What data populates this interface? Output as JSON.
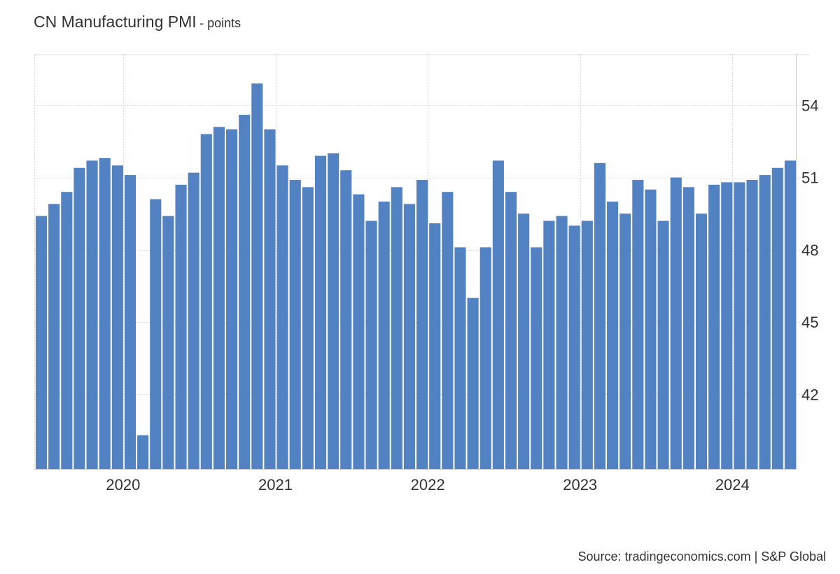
{
  "title": "CN Manufacturing PMI",
  "unit_label": "- points",
  "source": "Source: tradingeconomics.com | S&P Global",
  "chart_data": {
    "type": "bar",
    "start_month": "2019-06",
    "x": [
      "2019-06",
      "2019-07",
      "2019-08",
      "2019-09",
      "2019-10",
      "2019-11",
      "2019-12",
      "2020-01",
      "2020-02",
      "2020-03",
      "2020-04",
      "2020-05",
      "2020-06",
      "2020-07",
      "2020-08",
      "2020-09",
      "2020-10",
      "2020-11",
      "2020-12",
      "2021-01",
      "2021-02",
      "2021-03",
      "2021-04",
      "2021-05",
      "2021-06",
      "2021-07",
      "2021-08",
      "2021-09",
      "2021-10",
      "2021-11",
      "2021-12",
      "2022-01",
      "2022-02",
      "2022-03",
      "2022-04",
      "2022-05",
      "2022-06",
      "2022-07",
      "2022-08",
      "2022-09",
      "2022-10",
      "2022-11",
      "2022-12",
      "2023-01",
      "2023-02",
      "2023-03",
      "2023-04",
      "2023-05",
      "2023-06",
      "2023-07",
      "2023-08",
      "2023-09",
      "2023-10",
      "2023-11",
      "2023-12",
      "2024-01",
      "2024-02",
      "2024-03",
      "2024-04",
      "2024-05"
    ],
    "values": [
      49.4,
      49.9,
      50.4,
      51.4,
      51.7,
      51.8,
      51.5,
      51.1,
      40.3,
      50.1,
      49.4,
      50.7,
      51.2,
      52.8,
      53.1,
      53.0,
      53.6,
      54.9,
      53.0,
      51.5,
      50.9,
      50.6,
      51.9,
      52.0,
      51.3,
      50.3,
      49.2,
      50.0,
      50.6,
      49.9,
      50.9,
      49.1,
      50.4,
      48.1,
      46.0,
      48.1,
      51.7,
      50.4,
      49.5,
      48.1,
      49.2,
      49.4,
      49.0,
      49.2,
      51.6,
      50.0,
      49.5,
      50.9,
      50.5,
      49.2,
      51.0,
      50.6,
      49.5,
      50.7,
      50.8,
      50.8,
      50.9,
      51.1,
      51.4,
      51.7
    ],
    "xticks": [
      "2020",
      "2021",
      "2022",
      "2023",
      "2024"
    ],
    "yticks": [
      42,
      45,
      48,
      51,
      54
    ],
    "ylim": [
      38.9,
      56.1
    ],
    "y_axis_position": "right",
    "grid": true,
    "bar_color": "#5282c1",
    "grid_color": "#d9d9d9",
    "xlabel": "",
    "ylabel": ""
  }
}
